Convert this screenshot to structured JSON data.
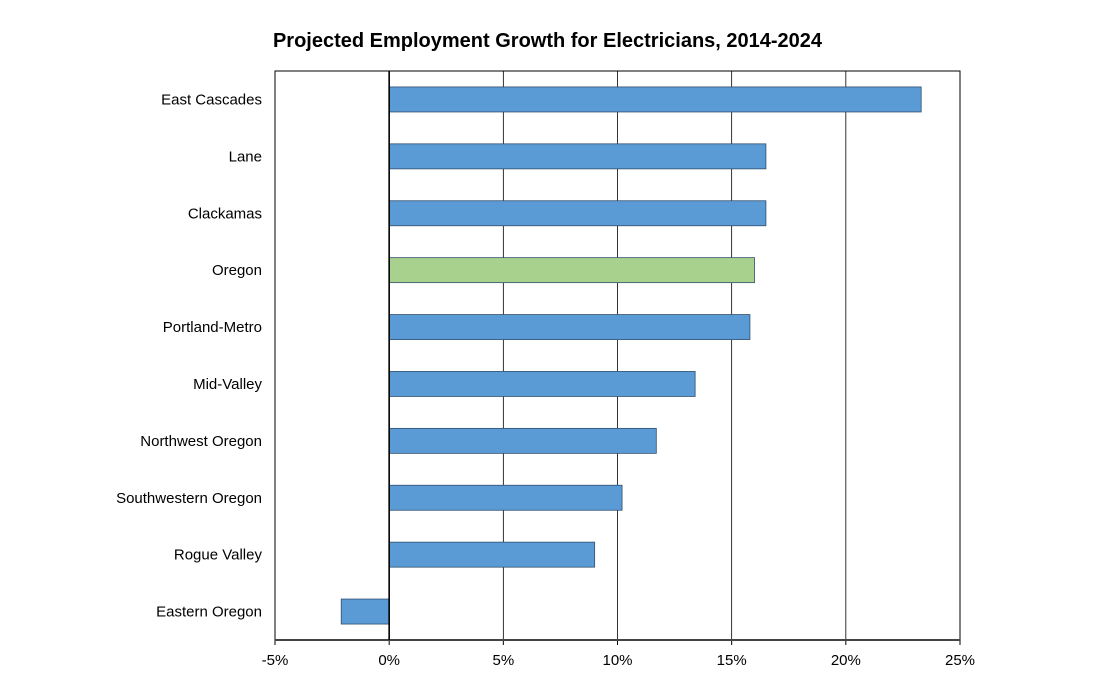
{
  "chart_data": {
    "type": "bar",
    "orientation": "horizontal",
    "title": "Projected Employment Growth for Electricians, 2014-2024",
    "xlabel": "",
    "ylabel": "",
    "categories": [
      "East Cascades",
      "Lane",
      "Clackamas",
      "Oregon",
      "Portland-Metro",
      "Mid-Valley",
      "Northwest Oregon",
      "Southwestern Oregon",
      "Rogue Valley",
      "Eastern Oregon"
    ],
    "values": [
      23.3,
      16.5,
      16.5,
      16.0,
      15.8,
      13.4,
      11.7,
      10.2,
      9.0,
      -2.1
    ],
    "value_unit": "%",
    "xlim": [
      -5,
      25
    ],
    "xticks": [
      -5,
      0,
      5,
      10,
      15,
      20,
      25
    ],
    "xtick_labels": [
      "-5%",
      "0%",
      "5%",
      "10%",
      "15%",
      "20%",
      "25%"
    ],
    "grid": "vertical",
    "legend": "none",
    "colors": {
      "default": "#5b9bd5",
      "highlight": "#a9d18e",
      "border": "#2f4f6f"
    },
    "highlight_category": "Oregon"
  }
}
